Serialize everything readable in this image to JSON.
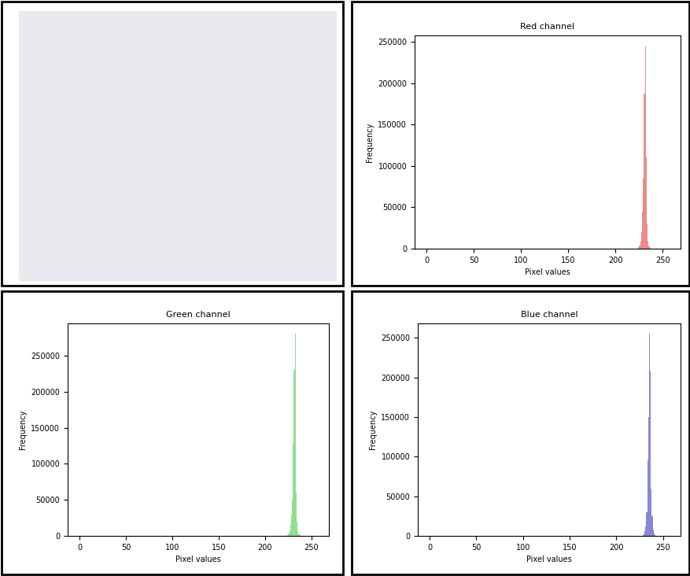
{
  "chart_data": [
    {
      "type": "histogram",
      "title": "Red channel",
      "x_label": "Pixel values",
      "y_label": "Frequency",
      "bins": [
        224,
        225,
        226,
        227,
        228,
        229,
        230,
        231,
        232,
        233,
        234,
        235,
        236,
        237,
        238
      ],
      "values": [
        1500,
        4000,
        9000,
        20000,
        45000,
        85000,
        188000,
        245000,
        110000,
        30000,
        9000,
        3000,
        1000,
        300
      ],
      "color": "#e86464",
      "xlim": [
        -12.8,
        268.8
      ],
      "ylim": [
        0,
        258000
      ],
      "xticks": [
        0,
        50,
        100,
        150,
        200,
        250
      ],
      "yticks": [
        0,
        50000,
        100000,
        150000,
        200000,
        250000
      ]
    },
    {
      "type": "histogram",
      "title": "Green channel",
      "x_label": "Pixel values",
      "y_label": "Frequency",
      "bins": [
        224,
        225,
        226,
        227,
        228,
        229,
        230,
        231,
        232,
        233,
        234,
        235,
        236,
        237,
        238,
        239,
        240
      ],
      "values": [
        1000,
        3000,
        7000,
        15000,
        30000,
        50000,
        130000,
        230000,
        281000,
        60000,
        20000,
        6000,
        2000,
        700,
        300,
        100
      ],
      "color": "#6cd46c",
      "xlim": [
        -12.8,
        268.8
      ],
      "ylim": [
        0,
        295000
      ],
      "xticks": [
        0,
        50,
        100,
        150,
        200,
        250
      ],
      "yticks": [
        0,
        50000,
        100000,
        150000,
        200000,
        250000
      ]
    },
    {
      "type": "histogram",
      "title": "Blue channel",
      "x_label": "Pixel values",
      "y_label": "Frequency",
      "bins": [
        228,
        229,
        230,
        231,
        232,
        233,
        234,
        235,
        236,
        237,
        238,
        239,
        240,
        241,
        242,
        243,
        244
      ],
      "values": [
        500,
        2000,
        6000,
        12000,
        30000,
        95000,
        150000,
        255000,
        207000,
        60000,
        25000,
        8000,
        3000,
        1000,
        400,
        100
      ],
      "color": "#6060c4",
      "xlim": [
        -12.8,
        268.8
      ],
      "ylim": [
        0,
        268000
      ],
      "xticks": [
        0,
        50,
        100,
        150,
        200,
        250
      ],
      "yticks": [
        0,
        50000,
        100000,
        150000,
        200000,
        250000
      ]
    }
  ]
}
